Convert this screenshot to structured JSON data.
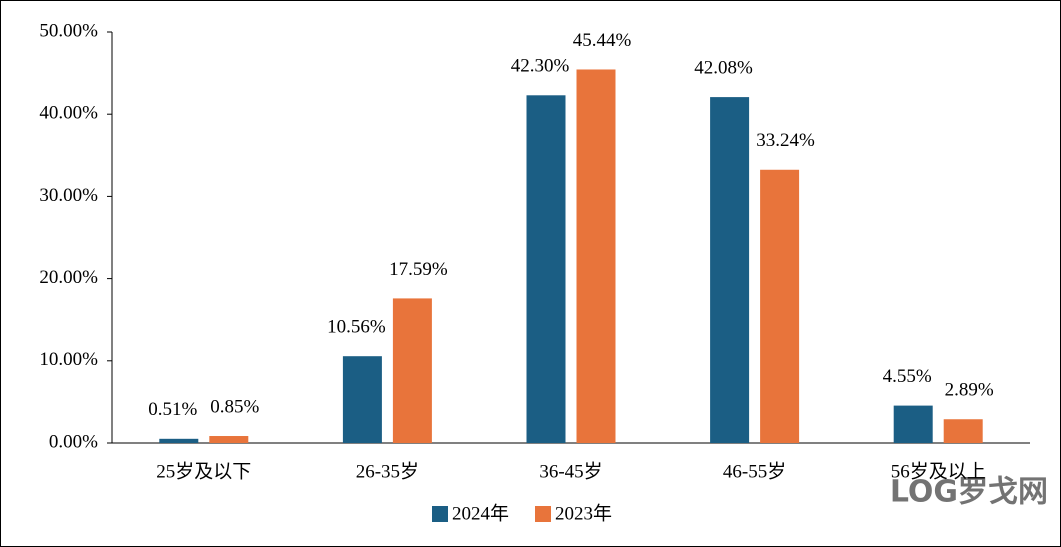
{
  "chart_data": {
    "type": "bar",
    "categories": [
      "25岁及以下",
      "26-35岁",
      "36-45岁",
      "46-55岁",
      "56岁及以上"
    ],
    "series": [
      {
        "name": "2024年",
        "color": "#1b5e84",
        "values": [
          0.51,
          10.56,
          42.3,
          42.08,
          4.55
        ],
        "value_labels": [
          "0.51%",
          "10.56%",
          "42.30%",
          "42.08%",
          "4.55%"
        ]
      },
      {
        "name": "2023年",
        "color": "#e8743b",
        "values": [
          0.85,
          17.59,
          45.44,
          33.24,
          2.89
        ],
        "value_labels": [
          "0.85%",
          "17.59%",
          "45.44%",
          "33.24%",
          "2.89%"
        ]
      }
    ],
    "ylim": [
      0,
      50
    ],
    "yticks": [
      {
        "value": 0,
        "label": "0.00%"
      },
      {
        "value": 10,
        "label": "10.00%"
      },
      {
        "value": 20,
        "label": "20.00%"
      },
      {
        "value": 30,
        "label": "30.00%"
      },
      {
        "value": 40,
        "label": "40.00%"
      },
      {
        "value": 50,
        "label": "50.00%"
      }
    ],
    "grid": false,
    "legend": "bottom",
    "watermark": "LOG罗戈网"
  }
}
